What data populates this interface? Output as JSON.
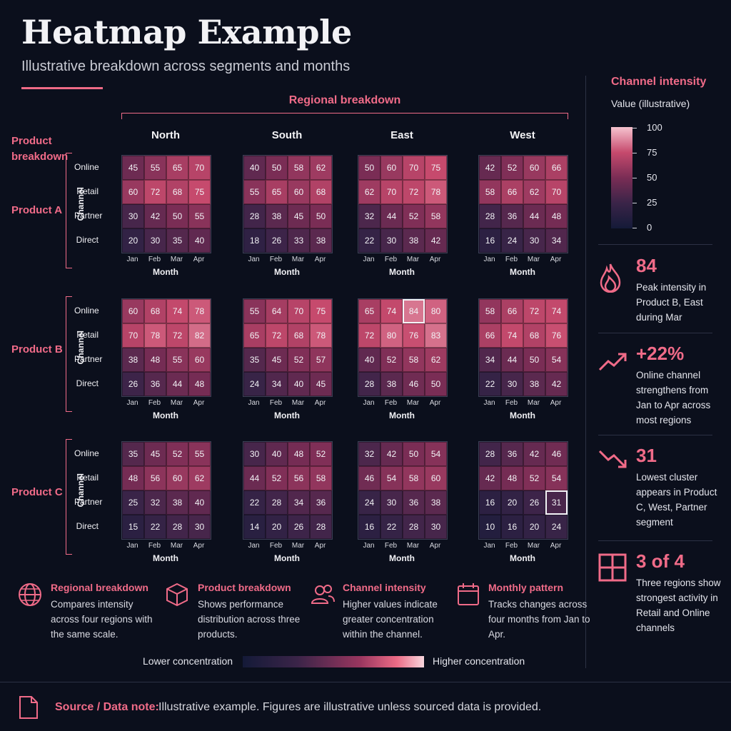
{
  "title": "Heatmap Example",
  "subtitle": "Illustrative breakdown across segments and months",
  "regional_header": "Regional breakdown",
  "product_header": [
    "Product",
    "breakdown"
  ],
  "channel_axis": "Channel",
  "month_axis": "Month",
  "legend": {
    "title": "Channel intensity",
    "subtitle": "Value (illustrative)",
    "ticks": [
      "100",
      "75",
      "50",
      "25",
      "0"
    ]
  },
  "stats": [
    {
      "icon": "flame-icon",
      "value": "84",
      "text": "Peak intensity in Product B, East during Mar"
    },
    {
      "icon": "trend-up-icon",
      "value": "+22%",
      "text": "Online channel strengthens from Jan to Apr across most regions"
    },
    {
      "icon": "trend-down-icon",
      "value": "31",
      "text": "Lowest cluster appears in Product C, West, Partner segment"
    },
    {
      "icon": "grid-icon",
      "value": "3 of 4",
      "text": "Three regions show strongest activity in Retail and Online channels"
    }
  ],
  "features": [
    {
      "icon": "globe-icon",
      "title": "Regional breakdown",
      "text": "Compares intensity across four regions with the same scale."
    },
    {
      "icon": "cube-icon",
      "title": "Product breakdown",
      "text": "Shows performance distribution across three products."
    },
    {
      "icon": "people-icon",
      "title": "Channel intensity",
      "text": "Higher values indicate greater concentration within the channel."
    },
    {
      "icon": "calendar-icon",
      "title": "Monthly pattern",
      "text": "Tracks changes across four months from Jan to Apr."
    }
  ],
  "gradient_legend": {
    "low": "Lower concentration",
    "high": "Higher concentration"
  },
  "footer": {
    "label": "Source / Data note:",
    "text": "Illustrative example. Figures are illustrative unless sourced data is provided."
  },
  "colors": {
    "accent": "#f06b88",
    "background": "#0b0f1c"
  },
  "chart_data": {
    "type": "heatmap",
    "value_range": [
      0,
      100
    ],
    "regions": [
      "North",
      "South",
      "East",
      "West"
    ],
    "products": [
      "Product A",
      "Product B",
      "Product C"
    ],
    "channels": [
      "Online",
      "Retail",
      "Partner",
      "Direct"
    ],
    "months": [
      "Jan",
      "Feb",
      "Mar",
      "Apr"
    ],
    "xlabel": "Month",
    "ylabel": "Channel",
    "highlights": [
      {
        "product": "Product B",
        "region": "East",
        "channel": "Online",
        "month": "Mar",
        "value": 84
      },
      {
        "product": "Product C",
        "region": "West",
        "channel": "Partner",
        "month": "Apr",
        "value": 31
      }
    ],
    "values": {
      "Product A": {
        "North": [
          [
            45,
            55,
            65,
            70
          ],
          [
            60,
            72,
            68,
            75
          ],
          [
            30,
            42,
            50,
            55
          ],
          [
            20,
            30,
            35,
            40
          ]
        ],
        "South": [
          [
            40,
            50,
            58,
            62
          ],
          [
            55,
            65,
            60,
            68
          ],
          [
            28,
            38,
            45,
            50
          ],
          [
            18,
            26,
            33,
            38
          ]
        ],
        "East": [
          [
            50,
            60,
            70,
            75
          ],
          [
            62,
            70,
            72,
            78
          ],
          [
            32,
            44,
            52,
            58
          ],
          [
            22,
            30,
            38,
            42
          ]
        ],
        "West": [
          [
            42,
            52,
            60,
            66
          ],
          [
            58,
            66,
            62,
            70
          ],
          [
            28,
            36,
            44,
            48
          ],
          [
            16,
            24,
            30,
            34
          ]
        ]
      },
      "Product B": {
        "North": [
          [
            60,
            68,
            74,
            78
          ],
          [
            70,
            78,
            72,
            82
          ],
          [
            38,
            48,
            55,
            60
          ],
          [
            26,
            36,
            44,
            48
          ]
        ],
        "South": [
          [
            55,
            64,
            70,
            75
          ],
          [
            65,
            72,
            68,
            78
          ],
          [
            35,
            45,
            52,
            57
          ],
          [
            24,
            34,
            40,
            45
          ]
        ],
        "East": [
          [
            65,
            74,
            84,
            80
          ],
          [
            72,
            80,
            76,
            83
          ],
          [
            40,
            52,
            58,
            62
          ],
          [
            28,
            38,
            46,
            50
          ]
        ],
        "West": [
          [
            58,
            66,
            72,
            74
          ],
          [
            66,
            74,
            68,
            76
          ],
          [
            34,
            44,
            50,
            54
          ],
          [
            22,
            30,
            38,
            42
          ]
        ]
      },
      "Product C": {
        "North": [
          [
            35,
            45,
            52,
            55
          ],
          [
            48,
            56,
            60,
            62
          ],
          [
            25,
            32,
            38,
            40
          ],
          [
            15,
            22,
            28,
            30
          ]
        ],
        "South": [
          [
            30,
            40,
            48,
            52
          ],
          [
            44,
            52,
            56,
            58
          ],
          [
            22,
            28,
            34,
            36
          ],
          [
            14,
            20,
            26,
            28
          ]
        ],
        "East": [
          [
            32,
            42,
            50,
            54
          ],
          [
            46,
            54,
            58,
            60
          ],
          [
            24,
            30,
            36,
            38
          ],
          [
            16,
            22,
            28,
            30
          ]
        ],
        "West": [
          [
            28,
            36,
            42,
            46
          ],
          [
            42,
            48,
            52,
            54
          ],
          [
            16,
            20,
            26,
            31
          ],
          [
            10,
            16,
            20,
            24
          ]
        ]
      }
    }
  }
}
